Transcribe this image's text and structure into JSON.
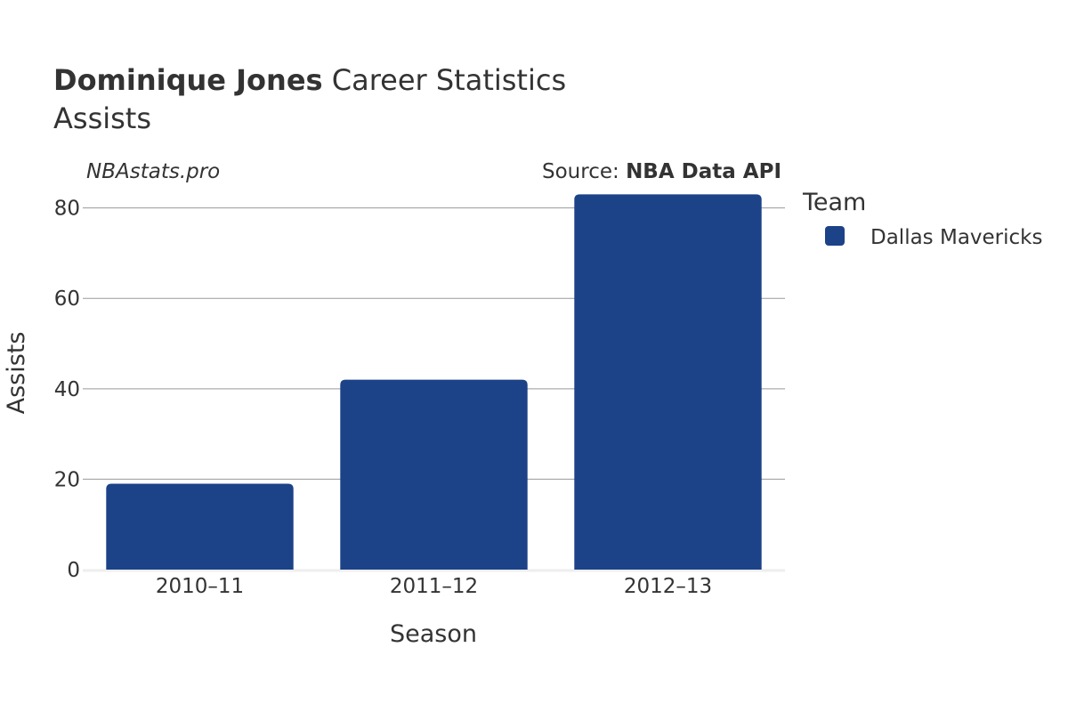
{
  "title": {
    "name": "Dominique Jones",
    "suffix": " Career Statistics",
    "subtitle": "Assists"
  },
  "watermark": "NBAstats.pro",
  "source": {
    "prefix": "Source: ",
    "name": "NBA Data API"
  },
  "legend": {
    "title": "Team"
  },
  "colors": {
    "bar": "#1c4288",
    "grid": "#999999",
    "axis_line": "#eeeeee"
  },
  "chart_data": {
    "type": "bar",
    "categories": [
      "2010–11",
      "2011–12",
      "2012–13"
    ],
    "series": [
      {
        "name": "Dallas Mavericks",
        "values": [
          19,
          42,
          83
        ]
      }
    ],
    "xlabel": "Season",
    "ylabel": "Assists",
    "ylim": [
      0,
      88
    ],
    "yticks": [
      0,
      20,
      40,
      60,
      80
    ],
    "grid": true,
    "legend_position": "right"
  }
}
